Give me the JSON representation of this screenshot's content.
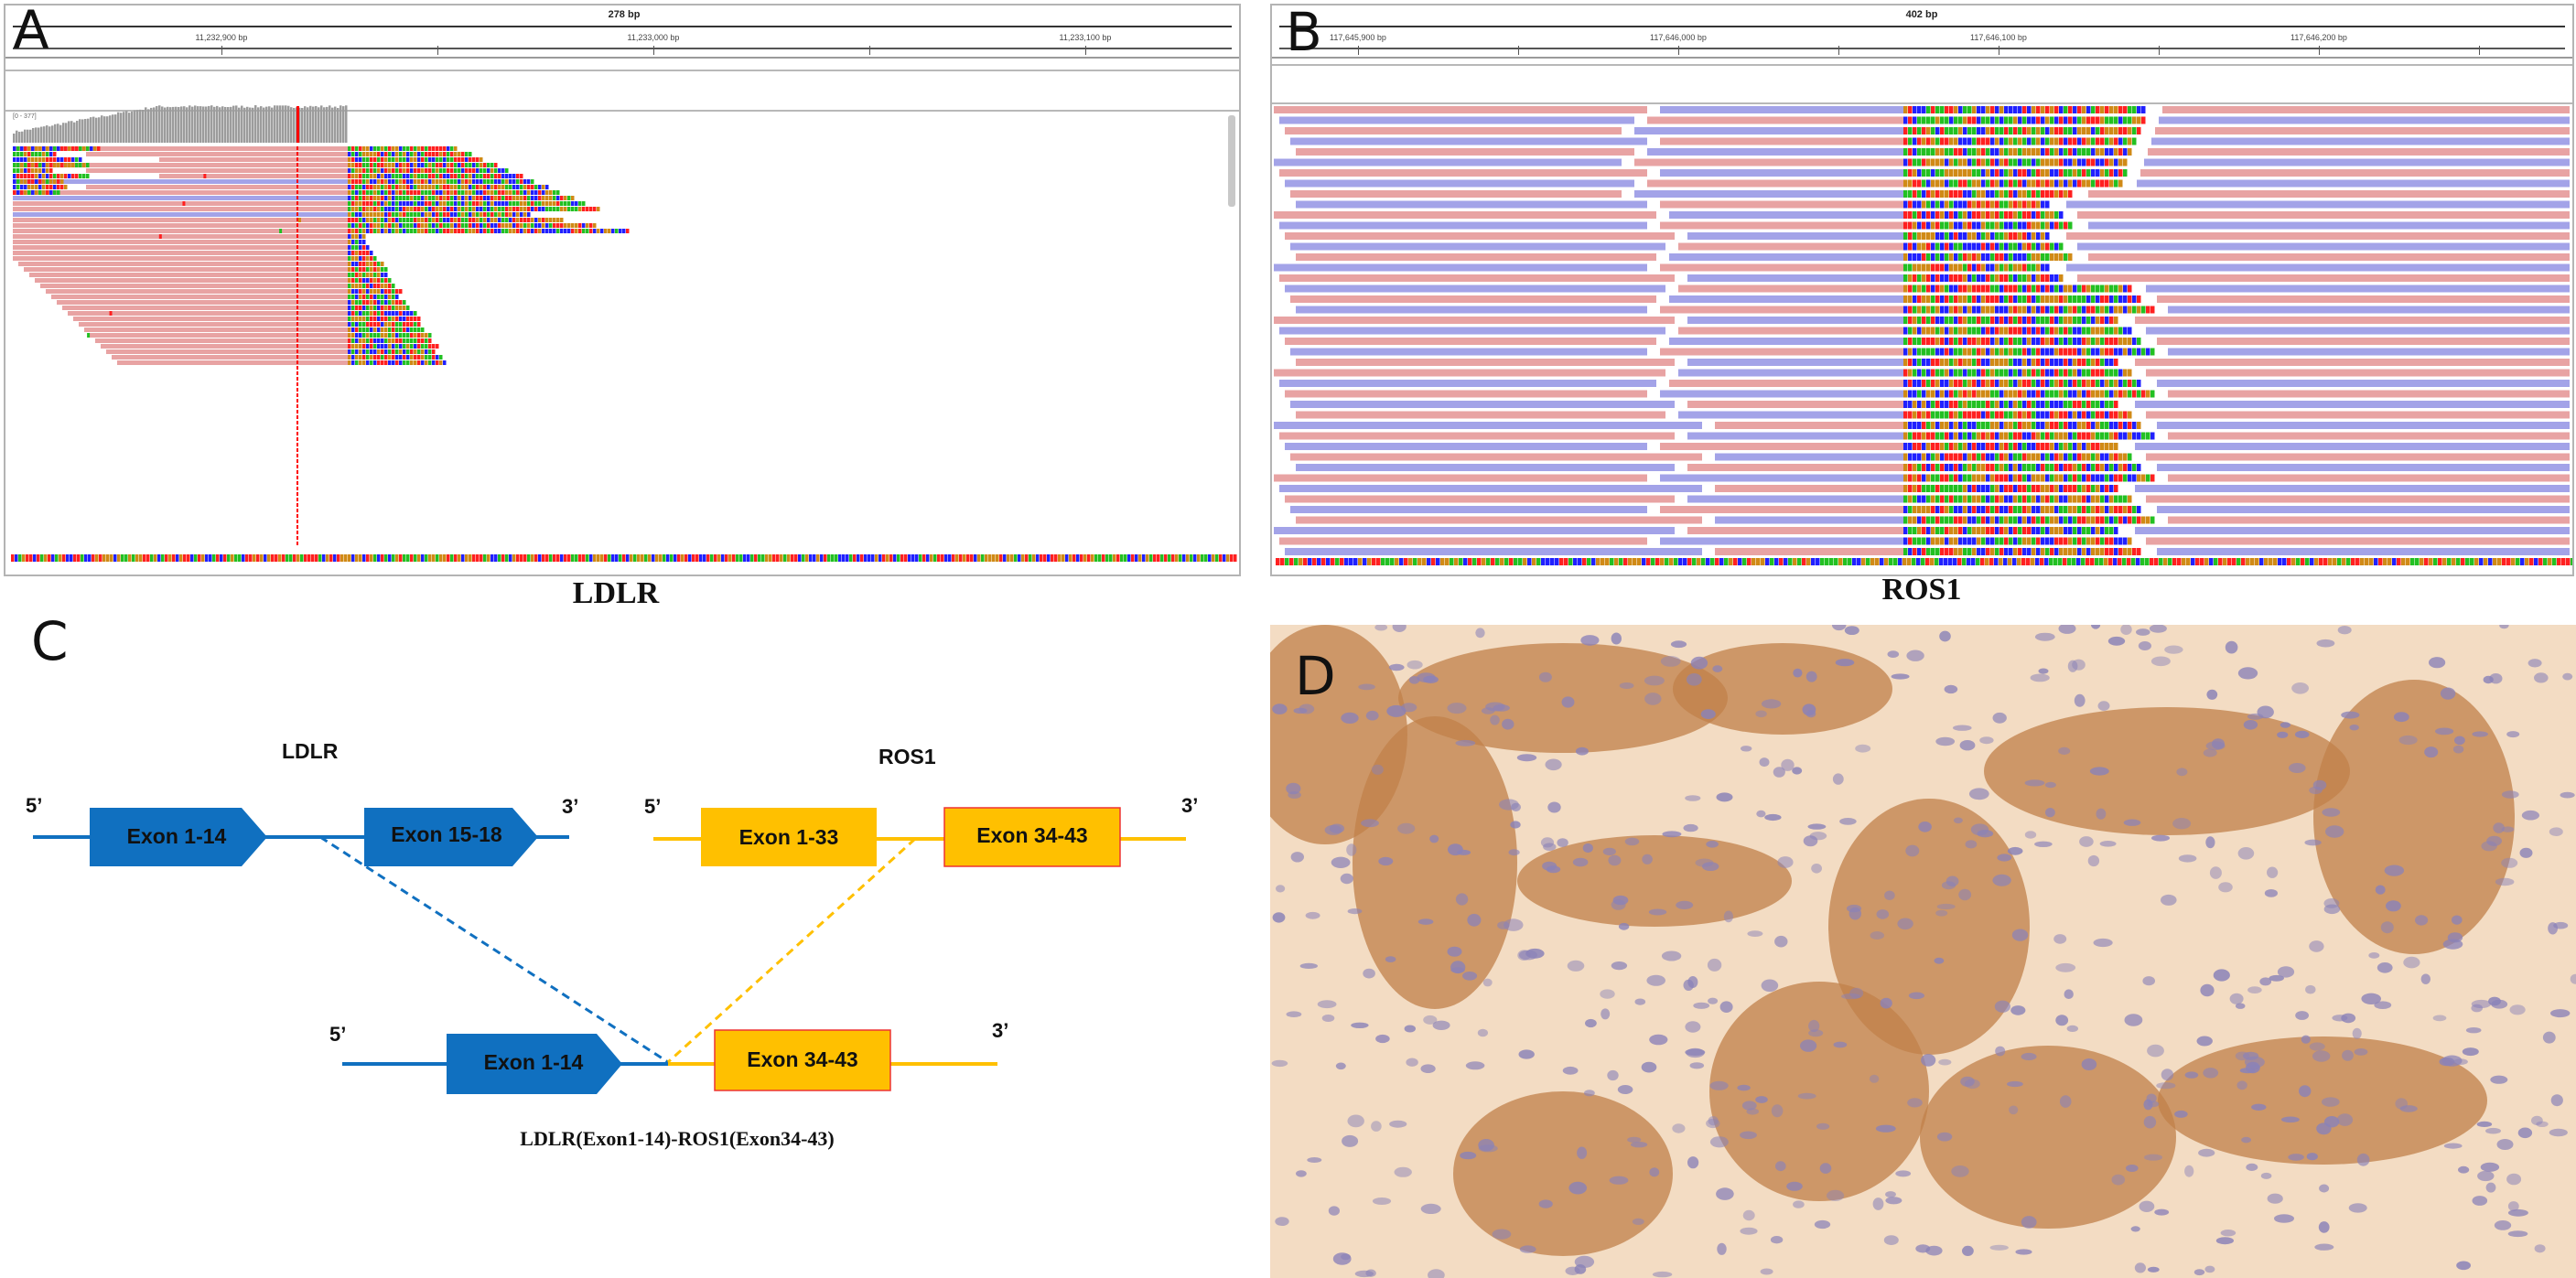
{
  "panels": {
    "a": {
      "letter": "A"
    },
    "b": {
      "letter": "B"
    },
    "c": {
      "letter": "C"
    },
    "d": {
      "letter": "D"
    }
  },
  "igv_ldlr": {
    "span": "278 bp",
    "ticks": [
      "11,232,900 bp",
      "11,233,000 bp",
      "11,233,100 bp"
    ],
    "coverage_label": "[0 - 377]",
    "caption": "LDLR",
    "colors": {
      "forward": "#e8a3a3",
      "reverse": "#a3a3e8",
      "mismatch_a": "#22c022",
      "mismatch_c": "#2020ff",
      "mismatch_g": "#d08a16",
      "mismatch_t": "#ff2020",
      "junction": "#ff0000"
    }
  },
  "igv_ros1": {
    "span": "402 bp",
    "ticks": [
      "117,645,900 bp",
      "117,646,000 bp",
      "117,646,100 bp",
      "117,646,200 bp"
    ],
    "caption": "ROS1",
    "colors": {
      "forward": "#e8a3a3",
      "reverse": "#a3a3e8"
    }
  },
  "diagram": {
    "ldlr": {
      "name": "LDLR",
      "five_prime": "5’",
      "three_prime": "3’",
      "exons": [
        "Exon 1-14",
        "Exon 15-18"
      ],
      "color": "#1070c0"
    },
    "ros1": {
      "name": "ROS1",
      "five_prime": "5’",
      "three_prime": "3’",
      "exons": [
        "Exon 1-33",
        "Exon 34-43"
      ],
      "color": "#ffc000"
    },
    "fusion": {
      "five_prime": "5’",
      "three_prime": "3’",
      "exons": [
        "Exon 1-14",
        "Exon 34-43"
      ],
      "caption": "LDLR(Exon1-14)-ROS1(Exon34-43)"
    }
  },
  "ihc": {
    "stain_color": "#c0804a",
    "background_color": "#f3dcc3",
    "nucleus_color": "#8a82b8"
  }
}
